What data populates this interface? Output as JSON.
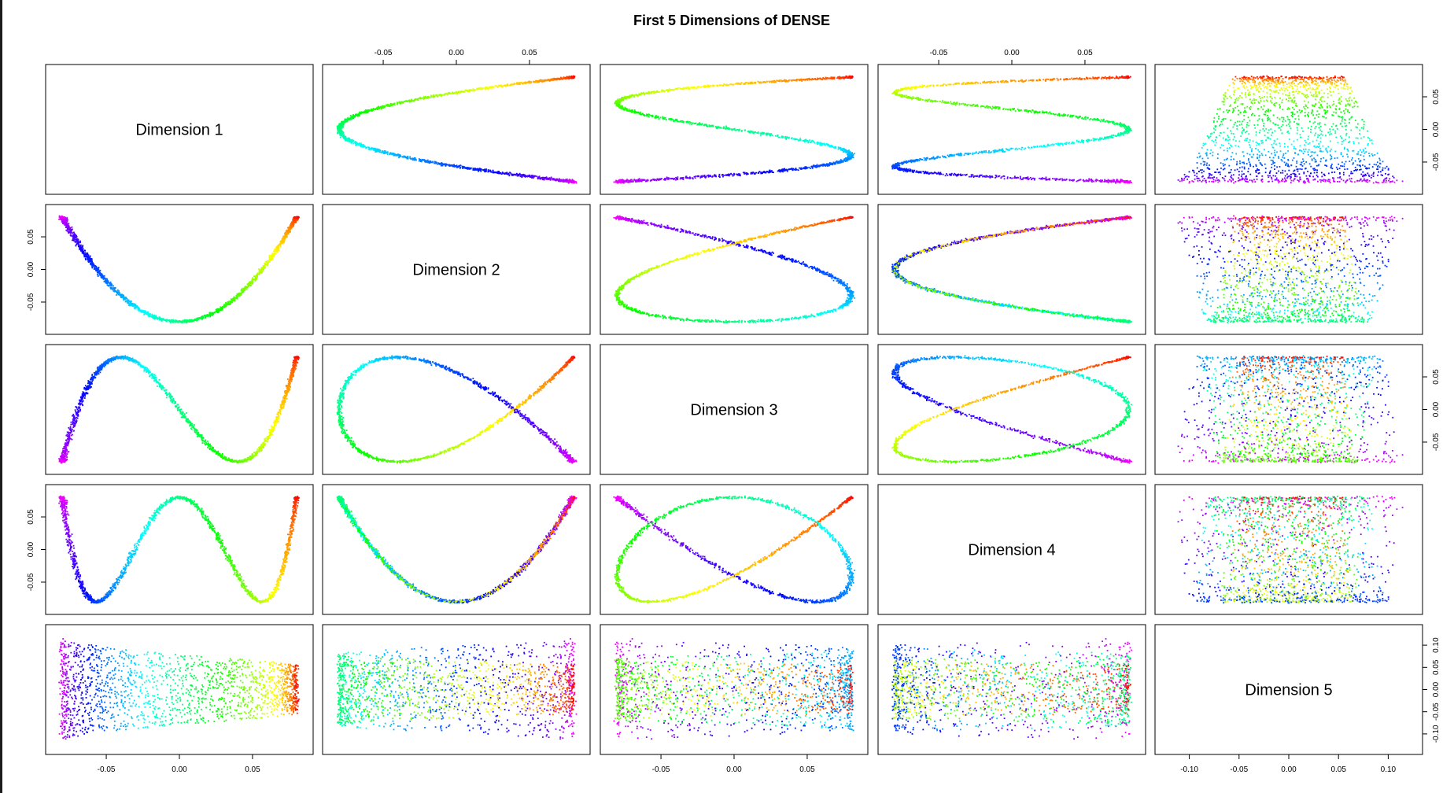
{
  "chart_data": {
    "type": "scatter",
    "subtype": "scatterplot-matrix",
    "title": "First 5 Dimensions of DENSE",
    "variables": [
      "Dimension 1",
      "Dimension 2",
      "Dimension 3",
      "Dimension 4",
      "Dimension 5"
    ],
    "axis_ranges": {
      "Dimension 1": [
        -0.085,
        0.085
      ],
      "Dimension 2": [
        -0.085,
        0.085
      ],
      "Dimension 3": [
        -0.085,
        0.085
      ],
      "Dimension 4": [
        -0.085,
        0.085
      ],
      "Dimension 5": [
        -0.125,
        0.125
      ]
    },
    "tick_values": {
      "Dimension 1": [
        -0.05,
        0.0,
        0.05
      ],
      "Dimension 2": [
        -0.05,
        0.0,
        0.05
      ],
      "Dimension 3": [
        -0.05,
        0.0,
        0.05
      ],
      "Dimension 4": [
        -0.05,
        0.0,
        0.05
      ],
      "Dimension 5": [
        -0.1,
        -0.05,
        0.0,
        0.05,
        0.1
      ]
    },
    "tick_labels": {
      "standard": [
        "-0.05",
        "0.00",
        "0.05"
      ],
      "dimension5": [
        "-0.10",
        "-0.05",
        "0.00",
        "0.05",
        "0.10"
      ]
    },
    "structure": {
      "Dimension 1": "cos(pi*t)",
      "Dimension 2": "cos(2*pi*t)",
      "Dimension 3": "cos(3*pi*t)",
      "Dimension 4": "cos(4*pi*t)",
      "Dimension 5": "spread coordinate, width widening from about 0.06 to about 0.12"
    },
    "amplitude": 0.08,
    "point_color": "rainbow by position t (red at t=0, through yellow, green, cyan, blue, to magenta at t=1)",
    "grid": false,
    "legend": "none"
  }
}
